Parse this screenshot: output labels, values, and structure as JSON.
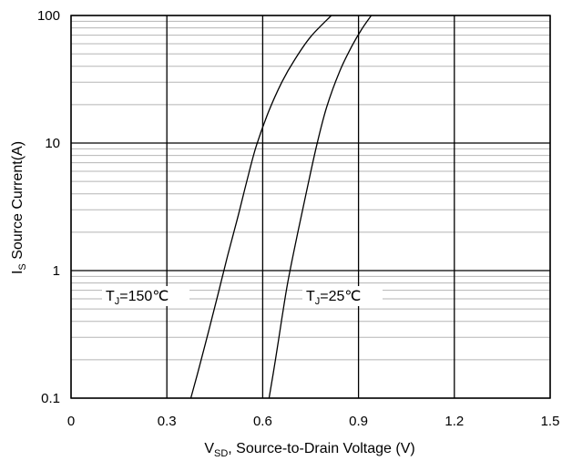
{
  "chart_data": {
    "type": "line",
    "x_scale": "linear",
    "y_scale": "log",
    "xlim": [
      0,
      1.5
    ],
    "ylim": [
      0.1,
      100
    ],
    "x_ticks": [
      "0",
      "0.3",
      "0.6",
      "0.9",
      "1.2",
      "1.5"
    ],
    "y_ticks": [
      "0.1",
      "1",
      "10",
      "100"
    ],
    "xlabel": {
      "main": "V",
      "sub": "SD",
      "rest": ", Source-to-Drain Voltage (V)"
    },
    "ylabel": {
      "main": "I",
      "sub": "S",
      "rest": " Source Current(A)"
    },
    "grid": true,
    "line_color": "#000000",
    "series": [
      {
        "name": "TJ=150℃",
        "label": {
          "main": "T",
          "sub": "J",
          "rest": "=150℃"
        },
        "x": [
          0.375,
          0.4,
          0.43,
          0.46,
          0.49,
          0.52,
          0.55,
          0.58,
          0.62,
          0.66,
          0.7,
          0.75,
          0.815
        ],
        "y": [
          0.1,
          0.17,
          0.33,
          0.65,
          1.3,
          2.5,
          5.0,
          9.5,
          18,
          30,
          45,
          68,
          100
        ]
      },
      {
        "name": "TJ=25℃",
        "label": {
          "main": "T",
          "sub": "J",
          "rest": "=25℃"
        },
        "x": [
          0.62,
          0.64,
          0.66,
          0.68,
          0.71,
          0.74,
          0.77,
          0.8,
          0.84,
          0.88,
          0.91,
          0.94
        ],
        "y": [
          0.1,
          0.2,
          0.42,
          0.85,
          2.0,
          4.5,
          9.8,
          19,
          36,
          58,
          78,
          100
        ]
      }
    ]
  }
}
